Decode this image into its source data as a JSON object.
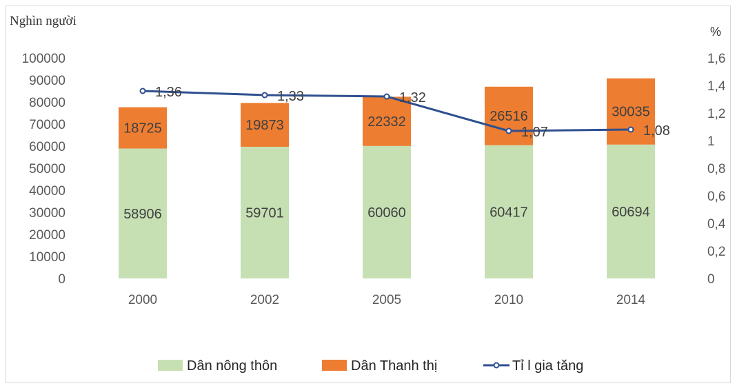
{
  "chart_data": {
    "type": "bar",
    "stacked": true,
    "categories": [
      "2000",
      "2002",
      "2005",
      "2010",
      "2014"
    ],
    "series": [
      {
        "name": "Dân nông thôn",
        "type": "bar",
        "axis": "left",
        "color": "#c6e0b4",
        "values": [
          58906,
          59701,
          60060,
          60417,
          60694
        ]
      },
      {
        "name": "Dân Thanh thị",
        "type": "bar",
        "axis": "left",
        "color": "#ed7d31",
        "values": [
          18725,
          19873,
          22332,
          26516,
          30035
        ]
      },
      {
        "name": "Tỉ l gia tăng",
        "type": "line",
        "axis": "right",
        "color": "#2f4f8f",
        "values": [
          1.36,
          1.33,
          1.32,
          1.07,
          1.08
        ],
        "labels": [
          "1,36",
          "1,33",
          "1,32",
          "1,07",
          "1,08"
        ]
      }
    ],
    "y_left": {
      "label": "Nghìn người",
      "ylim": [
        0,
        100000
      ],
      "ticks": [
        "0",
        "10000",
        "20000",
        "30000",
        "40000",
        "50000",
        "60000",
        "70000",
        "80000",
        "90000",
        "100000"
      ]
    },
    "y_right": {
      "label": "%",
      "ylim": [
        0,
        1.6
      ],
      "ticks": [
        "0",
        "0,2",
        "0,4",
        "0,6",
        "0,8",
        "1",
        "1,2",
        "1,4",
        "1,6"
      ]
    },
    "grid": false,
    "legend_position": "bottom"
  }
}
